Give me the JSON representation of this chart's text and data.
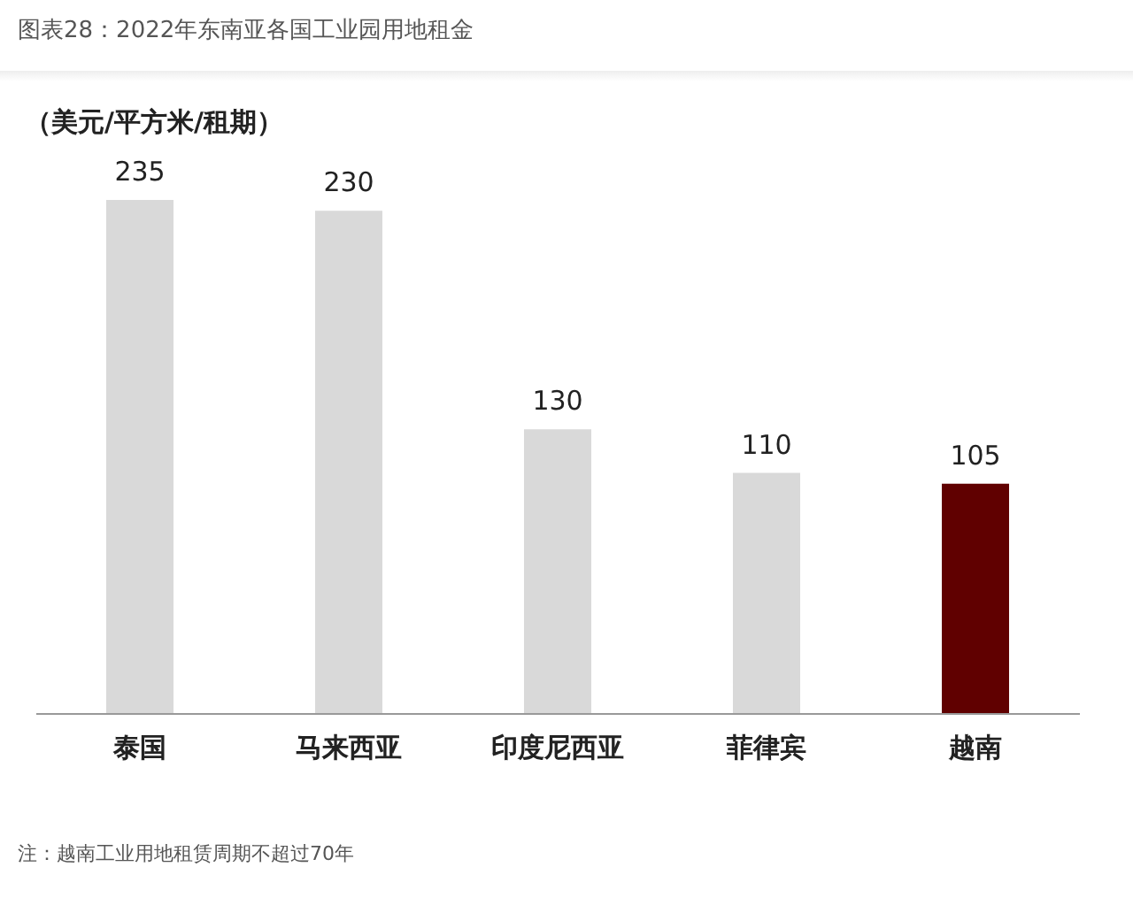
{
  "chart_data": {
    "type": "bar",
    "title": "图表28：2022年东南亚各国工业园用地租金",
    "ylabel": "（美元/平方米/租期）",
    "categories": [
      "泰国",
      "马来西亚",
      "印度尼西亚",
      "菲律宾",
      "越南"
    ],
    "values": [
      235,
      230,
      130,
      110,
      105
    ],
    "colors": [
      "#d9d9d9",
      "#d9d9d9",
      "#d9d9d9",
      "#d9d9d9",
      "#600000"
    ],
    "data_labels": true,
    "annotations": [
      "注：越南工业用地租赁周期不超过70年"
    ]
  }
}
